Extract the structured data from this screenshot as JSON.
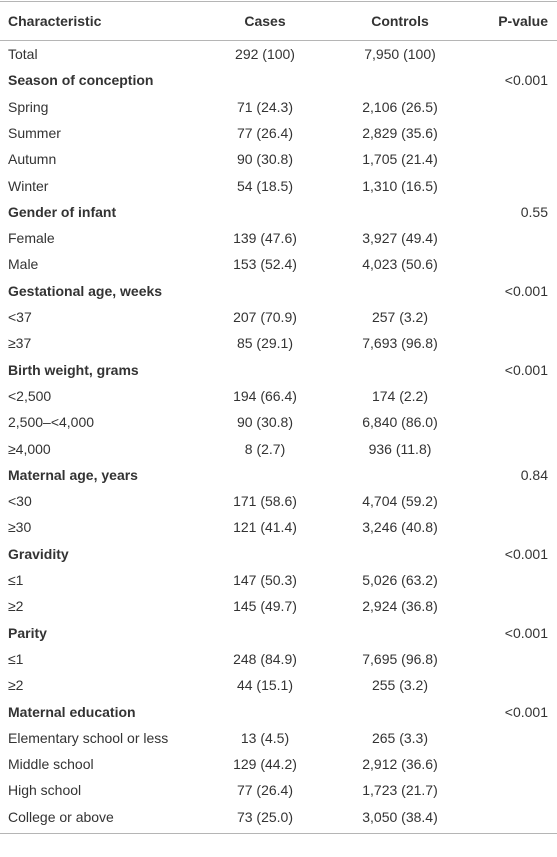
{
  "table": {
    "header": [
      "Characteristic",
      "Cases",
      "Controls",
      "P-value"
    ],
    "total": [
      "Total",
      "292 (100)",
      "7,950 (100)"
    ],
    "groups": [
      {
        "title": "Season of conception",
        "p_value": "<0.001",
        "rows": [
          [
            "Spring",
            "71 (24.3)",
            "2,106 (26.5)"
          ],
          [
            "Summer",
            "77 (26.4)",
            "2,829 (35.6)"
          ],
          [
            "Autumn",
            "90 (30.8)",
            "1,705 (21.4)"
          ],
          [
            "Winter",
            "54 (18.5)",
            "1,310 (16.5)"
          ]
        ]
      },
      {
        "title": "Gender of infant",
        "p_value": "0.55",
        "rows": [
          [
            "Female",
            "139 (47.6)",
            "3,927 (49.4)"
          ],
          [
            "Male",
            "153 (52.4)",
            "4,023 (50.6)"
          ]
        ]
      },
      {
        "title": "Gestational age, weeks",
        "p_value": "<0.001",
        "rows": [
          [
            "<37",
            "207 (70.9)",
            "257 (3.2)"
          ],
          [
            "≥37",
            "85 (29.1)",
            "7,693 (96.8)"
          ]
        ]
      },
      {
        "title": "Birth weight, grams",
        "p_value": "<0.001",
        "rows": [
          [
            "<2,500",
            "194 (66.4)",
            "174 (2.2)"
          ],
          [
            "2,500–<4,000",
            "90 (30.8)",
            "6,840 (86.0)"
          ],
          [
            "≥4,000",
            "8 (2.7)",
            "936 (11.8)"
          ]
        ]
      },
      {
        "title": "Maternal age, years",
        "p_value": "0.84",
        "rows": [
          [
            "<30",
            "171 (58.6)",
            "4,704 (59.2)"
          ],
          [
            "≥30",
            "121 (41.4)",
            "3,246 (40.8)"
          ]
        ]
      },
      {
        "title": "Gravidity",
        "p_value": "<0.001",
        "rows": [
          [
            "≤1",
            "147 (50.3)",
            "5,026 (63.2)"
          ],
          [
            "≥2",
            "145 (49.7)",
            "2,924 (36.8)"
          ]
        ]
      },
      {
        "title": "Parity",
        "p_value": "<0.001",
        "rows": [
          [
            "≤1",
            "248 (84.9)",
            "7,695 (96.8)"
          ],
          [
            "≥2",
            "44 (15.1)",
            "255 (3.2)"
          ]
        ]
      },
      {
        "title": "Maternal education",
        "p_value": "<0.001",
        "rows": [
          [
            "Elementary school or less",
            "13 (4.5)",
            "265 (3.3)"
          ],
          [
            "Middle school",
            "129 (44.2)",
            "2,912 (36.6)"
          ],
          [
            "High school",
            "77 (26.4)",
            "1,723 (21.7)"
          ],
          [
            "College or above",
            "73 (25.0)",
            "3,050 (38.4)"
          ]
        ]
      }
    ]
  }
}
